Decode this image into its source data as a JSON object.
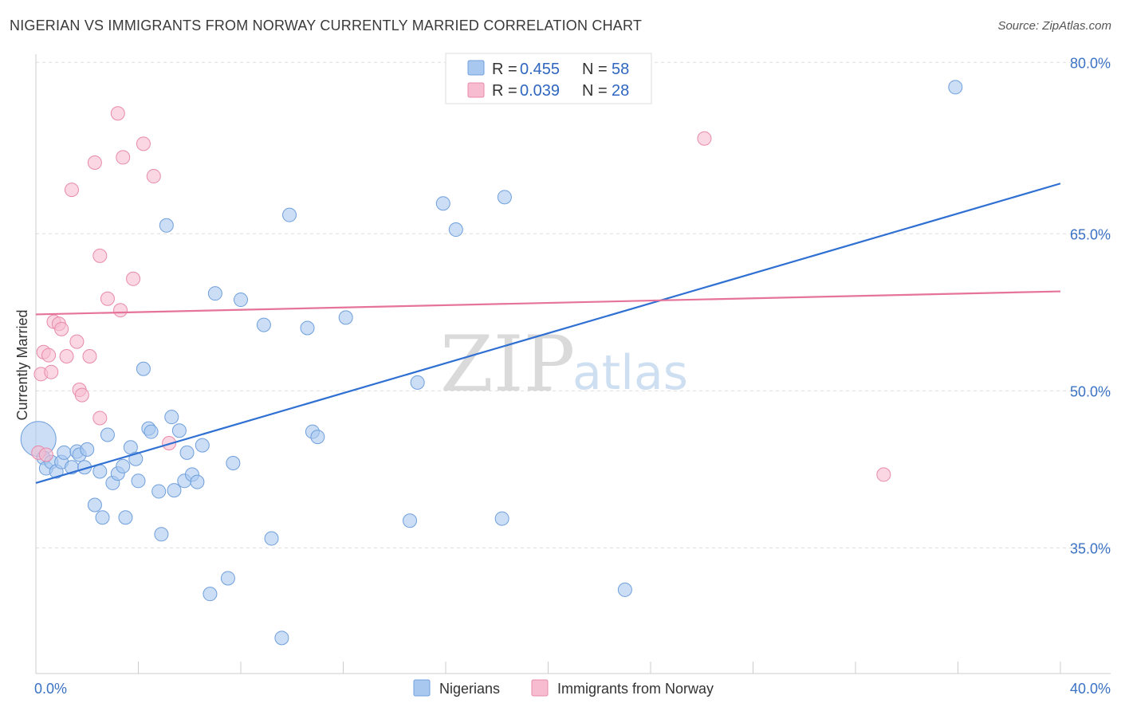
{
  "title": "NIGERIAN VS IMMIGRANTS FROM NORWAY CURRENTLY MARRIED CORRELATION CHART",
  "source": "Source: ZipAtlas.com",
  "watermark": {
    "zip": "ZIP",
    "atlas": "atlas"
  },
  "colors": {
    "blue_fill": "#a9c8f0",
    "blue_stroke": "#6f9fdc",
    "blue_line": "#2f70d2",
    "pink_fill": "#f7bcd0",
    "pink_stroke": "#e88aa9",
    "pink_line": "#e5739a",
    "grid": "#dddddd",
    "tick_label": "#3b72c4"
  },
  "legend": {
    "rows": [
      {
        "r_label": "R = ",
        "r_value": "0.455",
        "n_label": "N = ",
        "n_value": "58"
      },
      {
        "r_label": "R = ",
        "r_value": "0.039",
        "n_label": "N = ",
        "n_value": "28"
      }
    ]
  },
  "chart_data": {
    "type": "scatter",
    "title": "NIGERIAN VS IMMIGRANTS FROM NORWAY CURRENTLY MARRIED CORRELATION CHART",
    "xlabel": "",
    "ylabel": "Currently Married",
    "xlim": [
      0,
      40
    ],
    "ylim": [
      23,
      82
    ],
    "x_tick_labels": [
      "0.0%",
      "40.0%"
    ],
    "y_ticks": [
      35,
      50,
      65,
      80
    ],
    "y_tick_labels": [
      "35.0%",
      "50.0%",
      "65.0%",
      "80.0%"
    ],
    "grid": true,
    "legend_position": "top-center",
    "series": [
      {
        "name": "Nigerians",
        "color": "#a9c8f0",
        "trend": {
          "x": [
            0,
            40
          ],
          "y": [
            41.2,
            69.8
          ]
        },
        "points": [
          [
            0.1,
            45.4
          ],
          [
            0.3,
            43.6
          ],
          [
            0.4,
            42.6
          ],
          [
            0.6,
            43.2
          ],
          [
            0.8,
            42.3
          ],
          [
            1.0,
            43.2
          ],
          [
            1.1,
            44.1
          ],
          [
            1.4,
            42.7
          ],
          [
            1.6,
            44.2
          ],
          [
            1.7,
            43.9
          ],
          [
            1.9,
            42.7
          ],
          [
            2.0,
            44.4
          ],
          [
            2.3,
            39.1
          ],
          [
            2.5,
            42.3
          ],
          [
            2.6,
            37.9
          ],
          [
            2.8,
            45.8
          ],
          [
            3.0,
            41.2
          ],
          [
            3.2,
            42.1
          ],
          [
            3.4,
            42.8
          ],
          [
            3.5,
            37.9
          ],
          [
            3.7,
            44.6
          ],
          [
            3.9,
            43.5
          ],
          [
            4.0,
            41.4
          ],
          [
            4.2,
            52.1
          ],
          [
            4.4,
            46.4
          ],
          [
            4.5,
            46.1
          ],
          [
            4.8,
            40.4
          ],
          [
            4.9,
            36.3
          ],
          [
            5.1,
            65.8
          ],
          [
            5.3,
            47.5
          ],
          [
            5.4,
            40.5
          ],
          [
            5.6,
            46.2
          ],
          [
            5.8,
            41.4
          ],
          [
            5.9,
            44.1
          ],
          [
            6.1,
            42.0
          ],
          [
            6.3,
            41.3
          ],
          [
            6.5,
            44.8
          ],
          [
            6.8,
            30.6
          ],
          [
            7.0,
            59.3
          ],
          [
            7.5,
            32.1
          ],
          [
            7.7,
            43.1
          ],
          [
            8.0,
            58.7
          ],
          [
            8.9,
            56.3
          ],
          [
            9.2,
            35.9
          ],
          [
            9.6,
            26.4
          ],
          [
            9.9,
            66.8
          ],
          [
            10.6,
            56.0
          ],
          [
            10.8,
            46.1
          ],
          [
            11.0,
            45.6
          ],
          [
            12.1,
            57.0
          ],
          [
            14.6,
            37.6
          ],
          [
            14.9,
            50.8
          ],
          [
            15.9,
            67.9
          ],
          [
            16.4,
            65.4
          ],
          [
            18.2,
            37.8
          ],
          [
            18.3,
            68.5
          ],
          [
            23.0,
            31.0
          ],
          [
            35.9,
            79.0
          ]
        ]
      },
      {
        "name": "Immigrants from Norway",
        "color": "#f7bcd0",
        "trend": {
          "x": [
            0,
            40
          ],
          "y": [
            57.3,
            59.5
          ]
        },
        "points": [
          [
            0.1,
            44.1
          ],
          [
            0.2,
            51.6
          ],
          [
            0.3,
            53.7
          ],
          [
            0.5,
            53.4
          ],
          [
            0.6,
            51.8
          ],
          [
            0.7,
            56.6
          ],
          [
            0.9,
            56.4
          ],
          [
            1.0,
            55.9
          ],
          [
            1.2,
            53.3
          ],
          [
            1.4,
            69.2
          ],
          [
            1.6,
            54.7
          ],
          [
            1.7,
            50.1
          ],
          [
            1.8,
            49.6
          ],
          [
            2.1,
            53.3
          ],
          [
            2.3,
            71.8
          ],
          [
            2.5,
            47.4
          ],
          [
            2.5,
            62.9
          ],
          [
            2.8,
            58.8
          ],
          [
            3.2,
            76.5
          ],
          [
            3.3,
            57.7
          ],
          [
            3.4,
            72.3
          ],
          [
            3.8,
            60.7
          ],
          [
            4.2,
            73.6
          ],
          [
            4.6,
            70.5
          ],
          [
            5.2,
            45.0
          ],
          [
            0.4,
            43.9
          ],
          [
            26.1,
            74.1
          ],
          [
            33.1,
            42.0
          ]
        ]
      }
    ]
  },
  "bottom_legend": [
    "Nigerians",
    "Immigrants from Norway"
  ]
}
